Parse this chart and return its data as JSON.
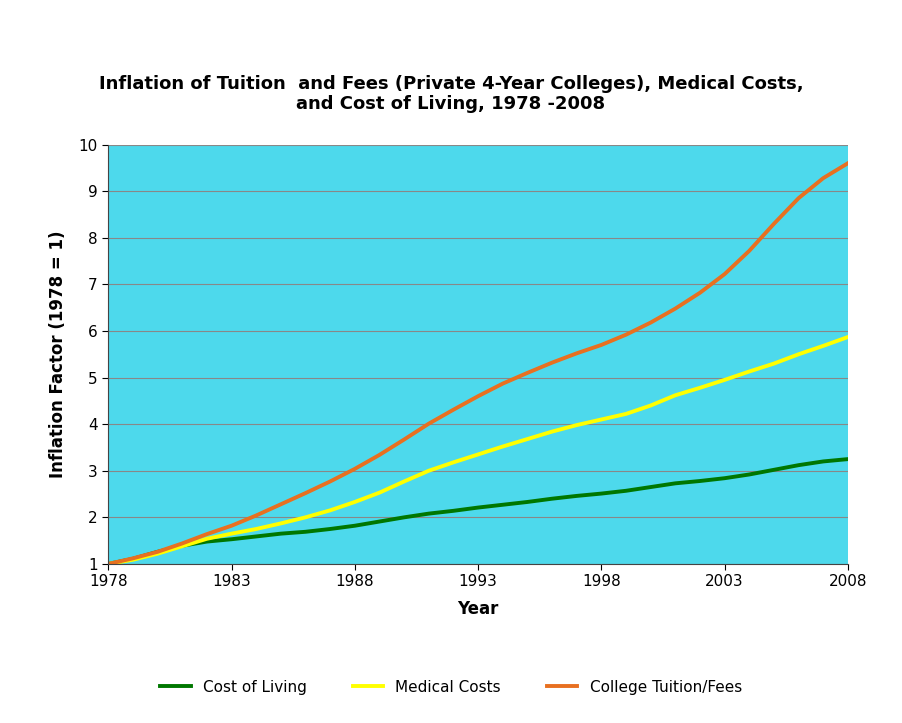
{
  "title": "Inflation of Tuition  and Fees (Private 4-Year Colleges), Medical Costs,\nand Cost of Living, 1978 -2008",
  "xlabel": "Year",
  "ylabel": "Inflation Factor (1978 = 1)",
  "xlim": [
    1978,
    2008
  ],
  "ylim": [
    1,
    10
  ],
  "xticks": [
    1978,
    1983,
    1988,
    1993,
    1998,
    2003,
    2008
  ],
  "yticks": [
    1,
    2,
    3,
    4,
    5,
    6,
    7,
    8,
    9,
    10
  ],
  "background_color": "#4DD9EC",
  "years": [
    1978,
    1979,
    1980,
    1981,
    1982,
    1983,
    1984,
    1985,
    1986,
    1987,
    1988,
    1989,
    1990,
    1991,
    1992,
    1993,
    1994,
    1995,
    1996,
    1997,
    1998,
    1999,
    2000,
    2001,
    2002,
    2003,
    2004,
    2005,
    2006,
    2007,
    2008
  ],
  "cost_of_living": [
    1.0,
    1.11,
    1.26,
    1.39,
    1.48,
    1.53,
    1.59,
    1.65,
    1.69,
    1.75,
    1.82,
    1.91,
    2.0,
    2.08,
    2.14,
    2.21,
    2.27,
    2.33,
    2.4,
    2.46,
    2.51,
    2.57,
    2.65,
    2.73,
    2.78,
    2.84,
    2.92,
    3.02,
    3.12,
    3.2,
    3.25
  ],
  "medical_costs": [
    1.0,
    1.09,
    1.22,
    1.38,
    1.54,
    1.65,
    1.75,
    1.87,
    2.0,
    2.15,
    2.33,
    2.53,
    2.77,
    3.0,
    3.18,
    3.35,
    3.52,
    3.68,
    3.84,
    3.98,
    4.1,
    4.22,
    4.4,
    4.62,
    4.78,
    4.95,
    5.13,
    5.3,
    5.5,
    5.68,
    5.87
  ],
  "college_tuition": [
    1.0,
    1.12,
    1.26,
    1.44,
    1.64,
    1.82,
    2.04,
    2.28,
    2.52,
    2.77,
    3.04,
    3.34,
    3.67,
    4.01,
    4.31,
    4.6,
    4.87,
    5.1,
    5.32,
    5.52,
    5.7,
    5.92,
    6.18,
    6.48,
    6.82,
    7.22,
    7.72,
    8.3,
    8.85,
    9.28,
    9.6
  ],
  "col_color": "#007700",
  "med_color": "#FFFF00",
  "tui_color": "#E87020",
  "col_label": "Cost of Living",
  "med_label": "Medical Costs",
  "tui_label": "College Tuition/Fees",
  "line_width": 2.8,
  "title_fontsize": 13,
  "axis_label_fontsize": 12,
  "tick_fontsize": 11,
  "legend_fontsize": 11,
  "grid_color": "#888888",
  "grid_linewidth": 0.8
}
